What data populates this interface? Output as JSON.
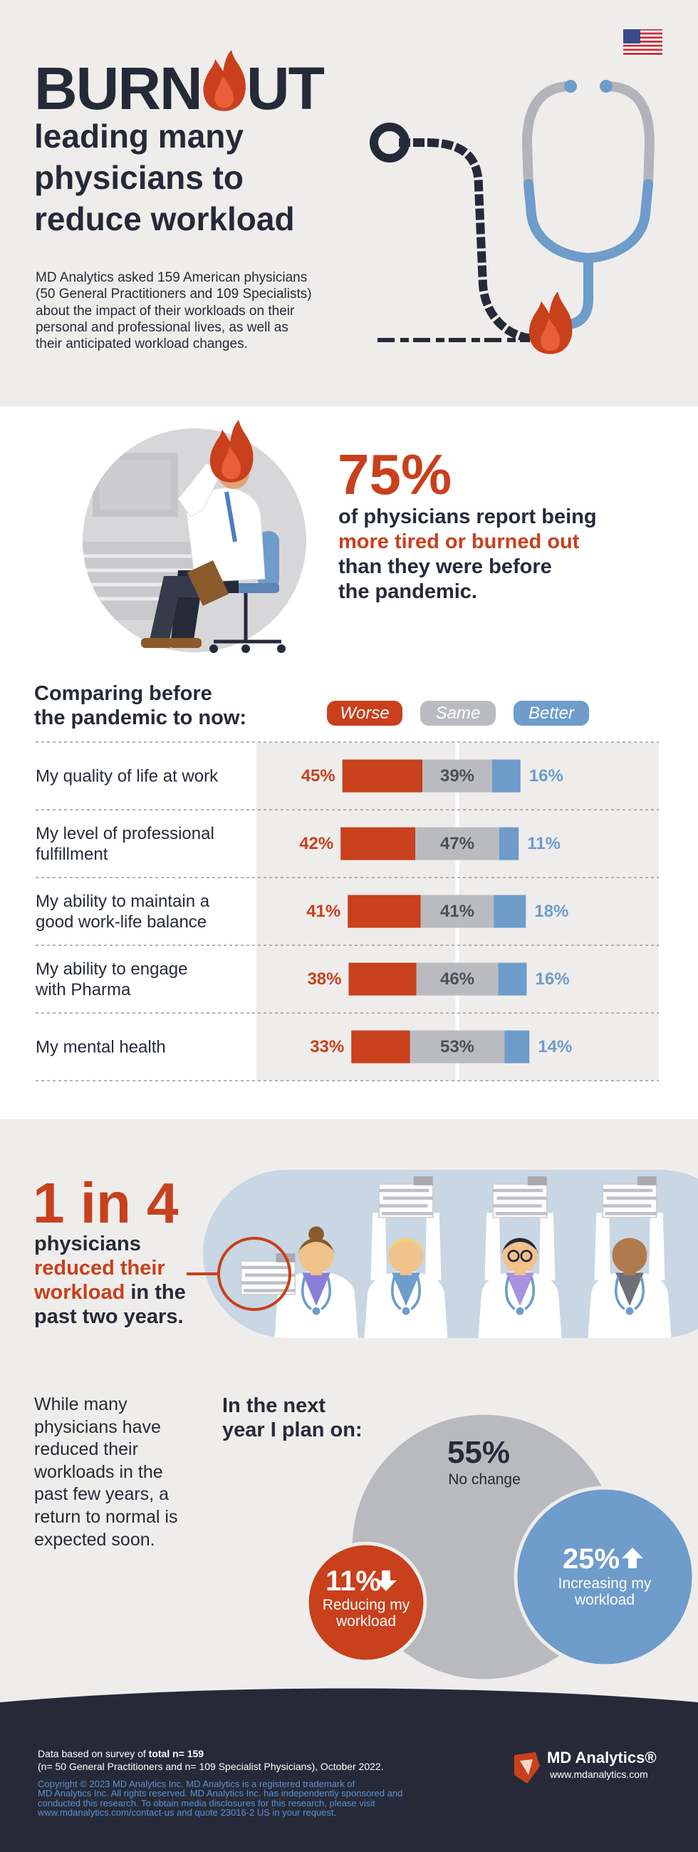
{
  "header": {
    "title": "BURNOUT",
    "subtitle": "leading many\nphysicians to\nreduce workload",
    "intro": "MD Analytics asked 159 American physicians\n(50 General Practitioners and 109 Specialists)\nabout the impact of their workloads on their\npersonal and professional lives, as well as\ntheir anticipated workload changes."
  },
  "highlight": {
    "figure": "75%",
    "lead": "of physicians report being",
    "emphasis": "more tired or burned out",
    "rest": "than they were before\nthe pandemic."
  },
  "chart_data": [
    {
      "type": "bar",
      "orientation": "horizontal",
      "stacked": true,
      "title": "Comparing before\nthe pandemic to now:",
      "categories": [
        "My quality of life at work",
        "My level of professional\nfulfillment",
        "My ability to maintain a\ngood work-life balance",
        "My ability to engage\nwith Pharma",
        "My mental health"
      ],
      "series": [
        {
          "name": "Worse",
          "color": "#c8401c",
          "values": [
            45,
            42,
            41,
            38,
            33
          ],
          "value_labels": [
            "45%",
            "42%",
            "41%",
            "38%",
            "33%"
          ]
        },
        {
          "name": "Same",
          "color": "#babbc0",
          "values": [
            39,
            47,
            41,
            46,
            53
          ],
          "value_labels": [
            "39%",
            "47%",
            "41%",
            "46%",
            "53%"
          ]
        },
        {
          "name": "Better",
          "color": "#6e9ccb",
          "values": [
            16,
            11,
            18,
            16,
            14
          ],
          "value_labels": [
            "16%",
            "11%",
            "18%",
            "16%",
            "14%"
          ]
        }
      ]
    },
    {
      "type": "bubble",
      "title": "In the next\nyear I plan on:",
      "categories": [
        "No change",
        "Increasing my\nworkload",
        "Reducing my\nworkload"
      ],
      "values": [
        55,
        25,
        11
      ],
      "value_labels": [
        "55%",
        "25%",
        "11%"
      ],
      "colors": [
        "#b9babe",
        "#6e9ccb",
        "#c8401c"
      ]
    }
  ],
  "reduction": {
    "figure": "1 in 4",
    "lead": "physicians",
    "emphasis": "reduced their\nworkload",
    "rest": "in the\npast two years."
  },
  "outlook": "While many\nphysicians have\nreduced their\nworkloads in the\npast few years, a\nreturn to normal is\nexpected soon.",
  "footer": {
    "note": "Data based on survey of",
    "note_emphasis": "total n= 159",
    "sample": "(n= 50 General Practitioners and n= 109 Specialist Physicians), October 2022.",
    "copyright": "Copyright © 2023 MD Analytics Inc. MD Analytics is a registered trademark of\nMD Analytics Inc. All rights reserved. MD Analytics Inc. has independently sponsored and\nconducted this research. To obtain media disclosures for this research, please visit\nwww.mdanalytics.com/contact-us and quote 23016-2 US in your request.",
    "brand": "MD Analytics®",
    "website": "www.mdanalytics.com"
  }
}
